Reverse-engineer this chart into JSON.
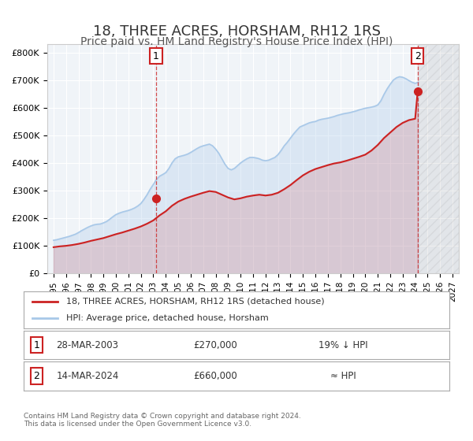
{
  "title": "18, THREE ACRES, HORSHAM, RH12 1RS",
  "subtitle": "Price paid vs. HM Land Registry's House Price Index (HPI)",
  "title_fontsize": 13,
  "subtitle_fontsize": 10,
  "hpi_color": "#a8c8e8",
  "price_color": "#cc2222",
  "background_color": "#ffffff",
  "plot_bg_color": "#f0f4f8",
  "sale1_year": 2003.23,
  "sale1_price": 270000,
  "sale1_label": "1",
  "sale1_date": "28-MAR-2003",
  "sale1_pct": "19% ↓ HPI",
  "sale2_year": 2024.2,
  "sale2_price": 660000,
  "sale2_label": "2",
  "sale2_date": "14-MAR-2024",
  "sale2_pct": "≈ HPI",
  "xlim": [
    1994.5,
    2027.5
  ],
  "ylim": [
    0,
    830000
  ],
  "yticks": [
    0,
    100000,
    200000,
    300000,
    400000,
    500000,
    600000,
    700000,
    800000
  ],
  "ytick_labels": [
    "£0",
    "£100K",
    "£200K",
    "£300K",
    "£400K",
    "£500K",
    "£600K",
    "£700K",
    "£800K"
  ],
  "legend_label_price": "18, THREE ACRES, HORSHAM, RH12 1RS (detached house)",
  "legend_label_hpi": "HPI: Average price, detached house, Horsham",
  "footnote": "Contains HM Land Registry data © Crown copyright and database right 2024.\nThis data is licensed under the Open Government Licence v3.0.",
  "annotation1_box_color": "#ffffff",
  "annotation1_border_color": "#cc2222",
  "annotation2_box_color": "#ffffff",
  "annotation2_border_color": "#cc2222",
  "hpi_data_years": [
    1995,
    1995.25,
    1995.5,
    1995.75,
    1996,
    1996.25,
    1996.5,
    1996.75,
    1997,
    1997.25,
    1997.5,
    1997.75,
    1998,
    1998.25,
    1998.5,
    1998.75,
    1999,
    1999.25,
    1999.5,
    1999.75,
    2000,
    2000.25,
    2000.5,
    2000.75,
    2001,
    2001.25,
    2001.5,
    2001.75,
    2002,
    2002.25,
    2002.5,
    2002.75,
    2003,
    2003.25,
    2003.5,
    2003.75,
    2004,
    2004.25,
    2004.5,
    2004.75,
    2005,
    2005.25,
    2005.5,
    2005.75,
    2006,
    2006.25,
    2006.5,
    2006.75,
    2007,
    2007.25,
    2007.5,
    2007.75,
    2008,
    2008.25,
    2008.5,
    2008.75,
    2009,
    2009.25,
    2009.5,
    2009.75,
    2010,
    2010.25,
    2010.5,
    2010.75,
    2011,
    2011.25,
    2011.5,
    2011.75,
    2012,
    2012.25,
    2012.5,
    2012.75,
    2013,
    2013.25,
    2013.5,
    2013.75,
    2014,
    2014.25,
    2014.5,
    2014.75,
    2015,
    2015.25,
    2015.5,
    2015.75,
    2016,
    2016.25,
    2016.5,
    2016.75,
    2017,
    2017.25,
    2017.5,
    2017.75,
    2018,
    2018.25,
    2018.5,
    2018.75,
    2019,
    2019.25,
    2019.5,
    2019.75,
    2020,
    2020.25,
    2020.5,
    2020.75,
    2021,
    2021.25,
    2021.5,
    2021.75,
    2022,
    2022.25,
    2022.5,
    2022.75,
    2023,
    2023.25,
    2023.5,
    2023.75,
    2024,
    2024.25
  ],
  "hpi_data_values": [
    120000,
    122000,
    125000,
    128000,
    131000,
    134000,
    138000,
    142000,
    148000,
    155000,
    161000,
    167000,
    172000,
    176000,
    178000,
    179000,
    183000,
    188000,
    196000,
    205000,
    213000,
    218000,
    222000,
    225000,
    228000,
    232000,
    237000,
    244000,
    253000,
    268000,
    285000,
    305000,
    322000,
    340000,
    352000,
    358000,
    365000,
    380000,
    400000,
    415000,
    422000,
    425000,
    428000,
    432000,
    438000,
    445000,
    452000,
    458000,
    462000,
    465000,
    468000,
    462000,
    450000,
    435000,
    415000,
    395000,
    380000,
    375000,
    380000,
    390000,
    400000,
    408000,
    415000,
    420000,
    420000,
    418000,
    415000,
    410000,
    408000,
    410000,
    415000,
    420000,
    430000,
    445000,
    462000,
    475000,
    490000,
    505000,
    518000,
    530000,
    535000,
    540000,
    545000,
    548000,
    550000,
    555000,
    558000,
    560000,
    562000,
    565000,
    568000,
    572000,
    575000,
    578000,
    580000,
    582000,
    585000,
    588000,
    592000,
    595000,
    598000,
    600000,
    602000,
    605000,
    610000,
    625000,
    648000,
    668000,
    685000,
    700000,
    708000,
    712000,
    710000,
    705000,
    698000,
    692000,
    688000,
    692000
  ],
  "price_data_years": [
    1995,
    1995.5,
    1996,
    1996.5,
    1997,
    1997.5,
    1998,
    1998.5,
    1999,
    1999.5,
    2000,
    2000.5,
    2001,
    2001.5,
    2002,
    2002.5,
    2003,
    2003.5,
    2004,
    2004.5,
    2005,
    2005.5,
    2006,
    2006.5,
    2007,
    2007.5,
    2008,
    2008.5,
    2009,
    2009.5,
    2010,
    2010.5,
    2011,
    2011.5,
    2012,
    2012.5,
    2013,
    2013.5,
    2014,
    2014.5,
    2015,
    2015.5,
    2016,
    2016.5,
    2017,
    2017.5,
    2018,
    2018.5,
    2019,
    2019.5,
    2020,
    2020.5,
    2021,
    2021.5,
    2022,
    2022.5,
    2023,
    2023.5,
    2024,
    2024.2
  ],
  "price_data_values": [
    95000,
    98000,
    100000,
    103000,
    107000,
    112000,
    118000,
    123000,
    128000,
    135000,
    142000,
    148000,
    155000,
    162000,
    170000,
    180000,
    192000,
    210000,
    225000,
    245000,
    260000,
    270000,
    278000,
    285000,
    292000,
    298000,
    295000,
    285000,
    275000,
    268000,
    272000,
    278000,
    282000,
    285000,
    282000,
    285000,
    292000,
    305000,
    320000,
    338000,
    355000,
    368000,
    378000,
    385000,
    392000,
    398000,
    402000,
    408000,
    415000,
    422000,
    430000,
    445000,
    465000,
    490000,
    510000,
    530000,
    545000,
    555000,
    560000,
    660000
  ]
}
